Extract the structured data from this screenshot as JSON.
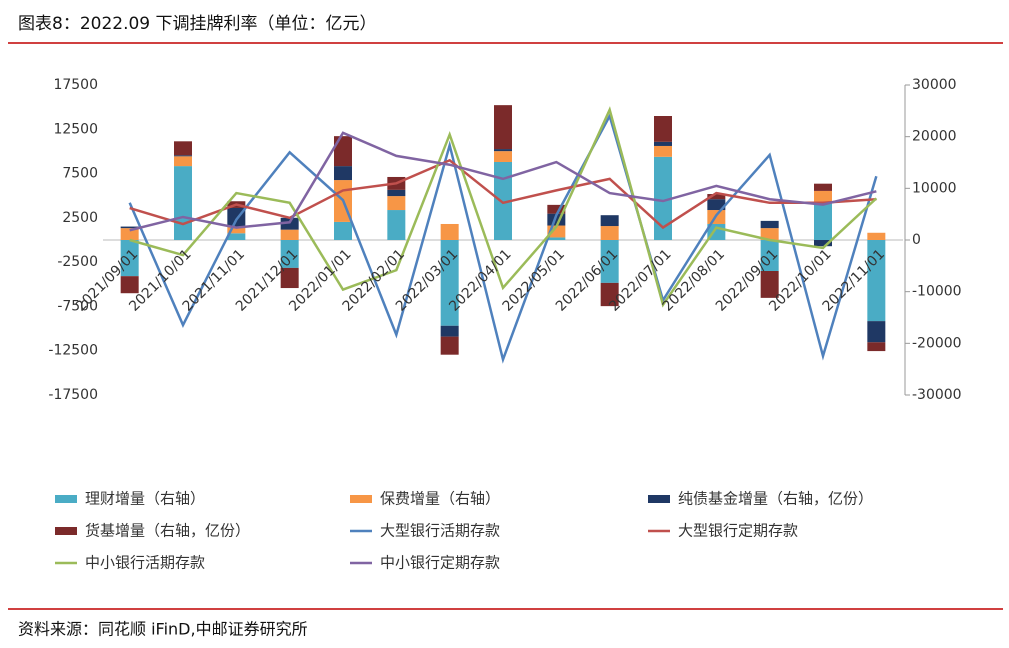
{
  "chart_data": {
    "type": "bar_line",
    "title": "图表8：2022.09 下调挂牌利率（单位：亿元）",
    "source": "资料来源：同花顺 iFinD,中邮证券研究所",
    "categories": [
      "2021/09/01",
      "2021/10/01",
      "2021/11/01",
      "2021/12/01",
      "2022/01/01",
      "2022/02/01",
      "2022/03/01",
      "2022/04/01",
      "2022/05/01",
      "2022/06/01",
      "2022/07/01",
      "2022/08/01",
      "2022/09/01",
      "2022/10/01",
      "2022/11/01"
    ],
    "ylim": [
      -17500,
      17500
    ],
    "yticks": [
      17500,
      12500,
      7500,
      2500,
      -2500,
      -7500,
      -12500,
      -17500
    ],
    "y2lim": [
      -30000,
      30000
    ],
    "y2ticks": [
      30000,
      20000,
      10000,
      0,
      -10000,
      -20000,
      -30000
    ],
    "series": [
      {
        "name": "理财增量（右轴）",
        "kind": "bar",
        "axis": "y2",
        "color": "#4aacc5",
        "values": [
          -7000,
          14300,
          1300,
          -5400,
          3500,
          5800,
          -16600,
          15100,
          500,
          -8300,
          16100,
          3100,
          -6000,
          7200,
          -15700
        ]
      },
      {
        "name": "保费增量（右轴）",
        "kind": "bar",
        "axis": "y2",
        "color": "#f79646",
        "values": [
          2300,
          1900,
          1200,
          2000,
          8100,
          2700,
          3100,
          2100,
          2300,
          2700,
          2100,
          2700,
          2300,
          2300,
          1400
        ]
      },
      {
        "name": "纯债基金增量（右轴，亿份）",
        "kind": "bar",
        "axis": "y2",
        "color": "#1f3864",
        "values": [
          300,
          200,
          3700,
          2300,
          2700,
          1200,
          -2100,
          400,
          2300,
          2100,
          800,
          2100,
          1400,
          -1200,
          -4100
        ]
      },
      {
        "name": "货基增量（右轴，亿份）",
        "kind": "bar",
        "axis": "y2",
        "color": "#7b2a2a",
        "values": [
          -3300,
          2700,
          1300,
          -3900,
          5800,
          2500,
          -3500,
          8500,
          1700,
          -4500,
          5000,
          1000,
          -5200,
          1400,
          -1700
        ]
      },
      {
        "name": "大型银行活期存款",
        "kind": "line",
        "color": "#4f81bd",
        "values": [
          4200,
          -9600,
          2300,
          9900,
          4500,
          -10700,
          10700,
          -13500,
          2800,
          14000,
          -6800,
          2800,
          9600,
          -13100,
          7200
        ]
      },
      {
        "name": "大型银行定期存款",
        "kind": "line",
        "color": "#c0504d",
        "values": [
          3600,
          1800,
          4000,
          2500,
          5600,
          6400,
          9000,
          4200,
          5600,
          6900,
          1400,
          5300,
          4200,
          4200,
          4600
        ]
      },
      {
        "name": "中小银行活期存款",
        "kind": "line",
        "color": "#9bbb59",
        "values": [
          0,
          -1700,
          5300,
          4200,
          -5600,
          -3400,
          11900,
          -5400,
          1500,
          14700,
          -7300,
          1400,
          0,
          -900,
          4700
        ]
      },
      {
        "name": "中小银行定期存款",
        "kind": "line",
        "color": "#8064a2",
        "values": [
          1100,
          2600,
          1400,
          2000,
          12100,
          9500,
          8500,
          6900,
          8800,
          5300,
          4400,
          6100,
          4600,
          4000,
          5500
        ]
      }
    ]
  }
}
